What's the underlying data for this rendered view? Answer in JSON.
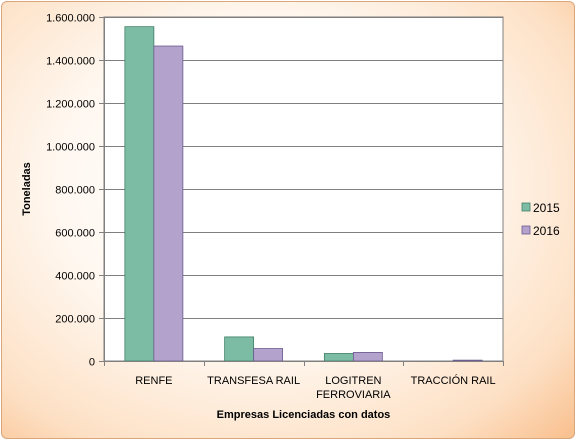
{
  "chart_data": {
    "type": "bar",
    "title": "",
    "xlabel": "Empresas Licenciadas  con datos",
    "ylabel": "Toneladas",
    "ylim": [
      0,
      1600000
    ],
    "yticks": [
      {
        "value": 0,
        "label": "0"
      },
      {
        "value": 200000,
        "label": "200.000"
      },
      {
        "value": 400000,
        "label": "400.000"
      },
      {
        "value": 600000,
        "label": "600.000"
      },
      {
        "value": 800000,
        "label": "800.000"
      },
      {
        "value": 1000000,
        "label": "1.000.000"
      },
      {
        "value": 1200000,
        "label": "1.200.000"
      },
      {
        "value": 1400000,
        "label": "1.400.000"
      },
      {
        "value": 1600000,
        "label": "1.600.000"
      }
    ],
    "categories": [
      [
        "RENFE"
      ],
      [
        "TRANSFESA RAIL"
      ],
      [
        "LOGITREN",
        "FERROVIARIA"
      ],
      [
        "TRACCIÓN RAIL"
      ]
    ],
    "series": [
      {
        "name": "2015",
        "color": "#7dbca4",
        "stroke": "#3f7f68",
        "values": [
          1555000,
          112000,
          35000,
          0
        ]
      },
      {
        "name": "2016",
        "color": "#b3a2cc",
        "stroke": "#6c5a8f",
        "values": [
          1465000,
          58000,
          40000,
          4000
        ]
      }
    ],
    "grid": true,
    "legend_position": "right"
  }
}
